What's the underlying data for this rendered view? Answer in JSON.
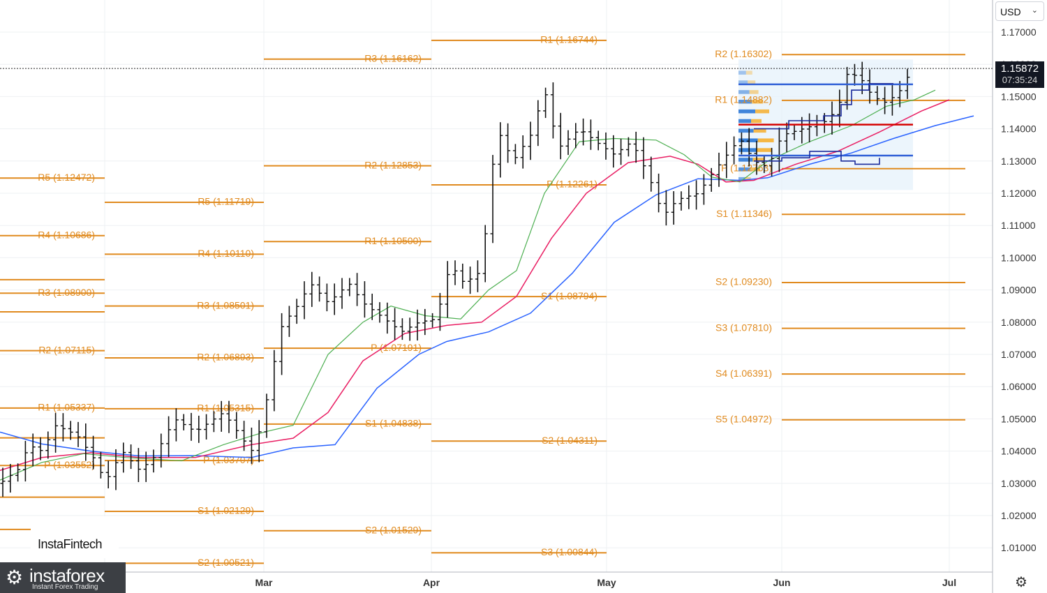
{
  "header": {
    "currency": "USD"
  },
  "price_badge": {
    "price": "1.15872",
    "countdown": "07:35:24"
  },
  "logo": {
    "text": "InstaFintech"
  },
  "brand": {
    "name": "instaforex",
    "tagline": "Instant Forex Trading"
  },
  "icons": {
    "gear": "gear-icon",
    "settings": "settings-icon",
    "chevron": "chevron-down-icon"
  },
  "chart_data": {
    "type": "line",
    "title": "",
    "y_axis": {
      "labels": [
        "1.17000",
        "1.16000",
        "1.15000",
        "1.14000",
        "1.13000",
        "1.12000",
        "1.11000",
        "1.10000",
        "1.09000",
        "1.08000",
        "1.07000",
        "1.06000",
        "1.05000",
        "1.04000",
        "1.03000",
        "1.02000",
        "1.01000"
      ],
      "min": 1.0,
      "max": 1.1777
    },
    "x_axis": {
      "months": [
        "Mar",
        "Apr",
        "May",
        "Jun",
        "Jul"
      ]
    },
    "current_price": 1.15872,
    "colors": {
      "pivot": "#e08a1e",
      "ma_fast": "#4caf50",
      "ma_mid": "#e91e63",
      "ma_slow": "#2962ff",
      "poc": "#d50000"
    },
    "pivot_levels": [
      {
        "label": "R5 (1.12472)",
        "value": 1.12472,
        "segment": 0
      },
      {
        "label": "R4 (1.10686)",
        "value": 1.10686,
        "segment": 0
      },
      {
        "label": "R3 (1.08900)",
        "value": 1.089,
        "segment": 0
      },
      {
        "label": "R2 (1.07115)",
        "value": 1.07115,
        "segment": 0
      },
      {
        "label": "R1 (1.05337)",
        "value": 1.05337,
        "segment": 0
      },
      {
        "label": "P (1.03552)",
        "value": 1.03552,
        "segment": 0
      },
      {
        "label": "",
        "value": 1.0932,
        "segment": 5
      },
      {
        "label": "",
        "value": 1.0832,
        "segment": 5
      },
      {
        "label": "",
        "value": 1.0441,
        "segment": 5
      },
      {
        "label": "",
        "value": 1.0257,
        "segment": 5
      },
      {
        "label": "",
        "value": 1.0157,
        "segment": 5
      },
      {
        "label": "R5 (1.11719)",
        "value": 1.11719,
        "segment": 1
      },
      {
        "label": "R4 (1.10110)",
        "value": 1.1011,
        "segment": 1
      },
      {
        "label": "R3 (1.08501)",
        "value": 1.08501,
        "segment": 1
      },
      {
        "label": "R2 (1.06893)",
        "value": 1.06893,
        "segment": 1
      },
      {
        "label": "R1 (1.05315)",
        "value": 1.05315,
        "segment": 1
      },
      {
        "label": "P (1.03707)",
        "value": 1.03707,
        "segment": 1
      },
      {
        "label": "S1 (1.02129)",
        "value": 1.02129,
        "segment": 1
      },
      {
        "label": "S2 (1.00521)",
        "value": 1.00521,
        "segment": 1
      },
      {
        "label": "R3 (1.16162)",
        "value": 1.16162,
        "segment": 2
      },
      {
        "label": "R2 (1.12853)",
        "value": 1.12853,
        "segment": 2
      },
      {
        "label": "R1 (1.10500)",
        "value": 1.105,
        "segment": 2
      },
      {
        "label": "P (1.07191)",
        "value": 1.07191,
        "segment": 2
      },
      {
        "label": "S1 (1.04838)",
        "value": 1.04838,
        "segment": 2
      },
      {
        "label": "S2 (1.01529)",
        "value": 1.01529,
        "segment": 2
      },
      {
        "label": "R1 (1.16744)",
        "value": 1.16744,
        "segment": 3
      },
      {
        "label": "P (1.12261)",
        "value": 1.12261,
        "segment": 3
      },
      {
        "label": "S1 (1.08794)",
        "value": 1.08794,
        "segment": 3
      },
      {
        "label": "S2 (1.04311)",
        "value": 1.04311,
        "segment": 3
      },
      {
        "label": "S3 (1.00844)",
        "value": 1.00844,
        "segment": 3
      },
      {
        "label": "R2 (1.16302)",
        "value": 1.16302,
        "segment": 4
      },
      {
        "label": "R1 (1.14882)",
        "value": 1.14882,
        "segment": 4
      },
      {
        "label": "P (1.12763)",
        "value": 1.12763,
        "segment": 4
      },
      {
        "label": "S1 (1.11346)",
        "value": 1.11346,
        "segment": 4
      },
      {
        "label": "S2 (1.09230)",
        "value": 1.0923,
        "segment": 4
      },
      {
        "label": "S3 (1.07810)",
        "value": 1.0781,
        "segment": 4
      },
      {
        "label": "S4 (1.06391)",
        "value": 1.06391,
        "segment": 4
      },
      {
        "label": "S5 (1.04972)",
        "value": 1.04972,
        "segment": 4
      }
    ]
  }
}
